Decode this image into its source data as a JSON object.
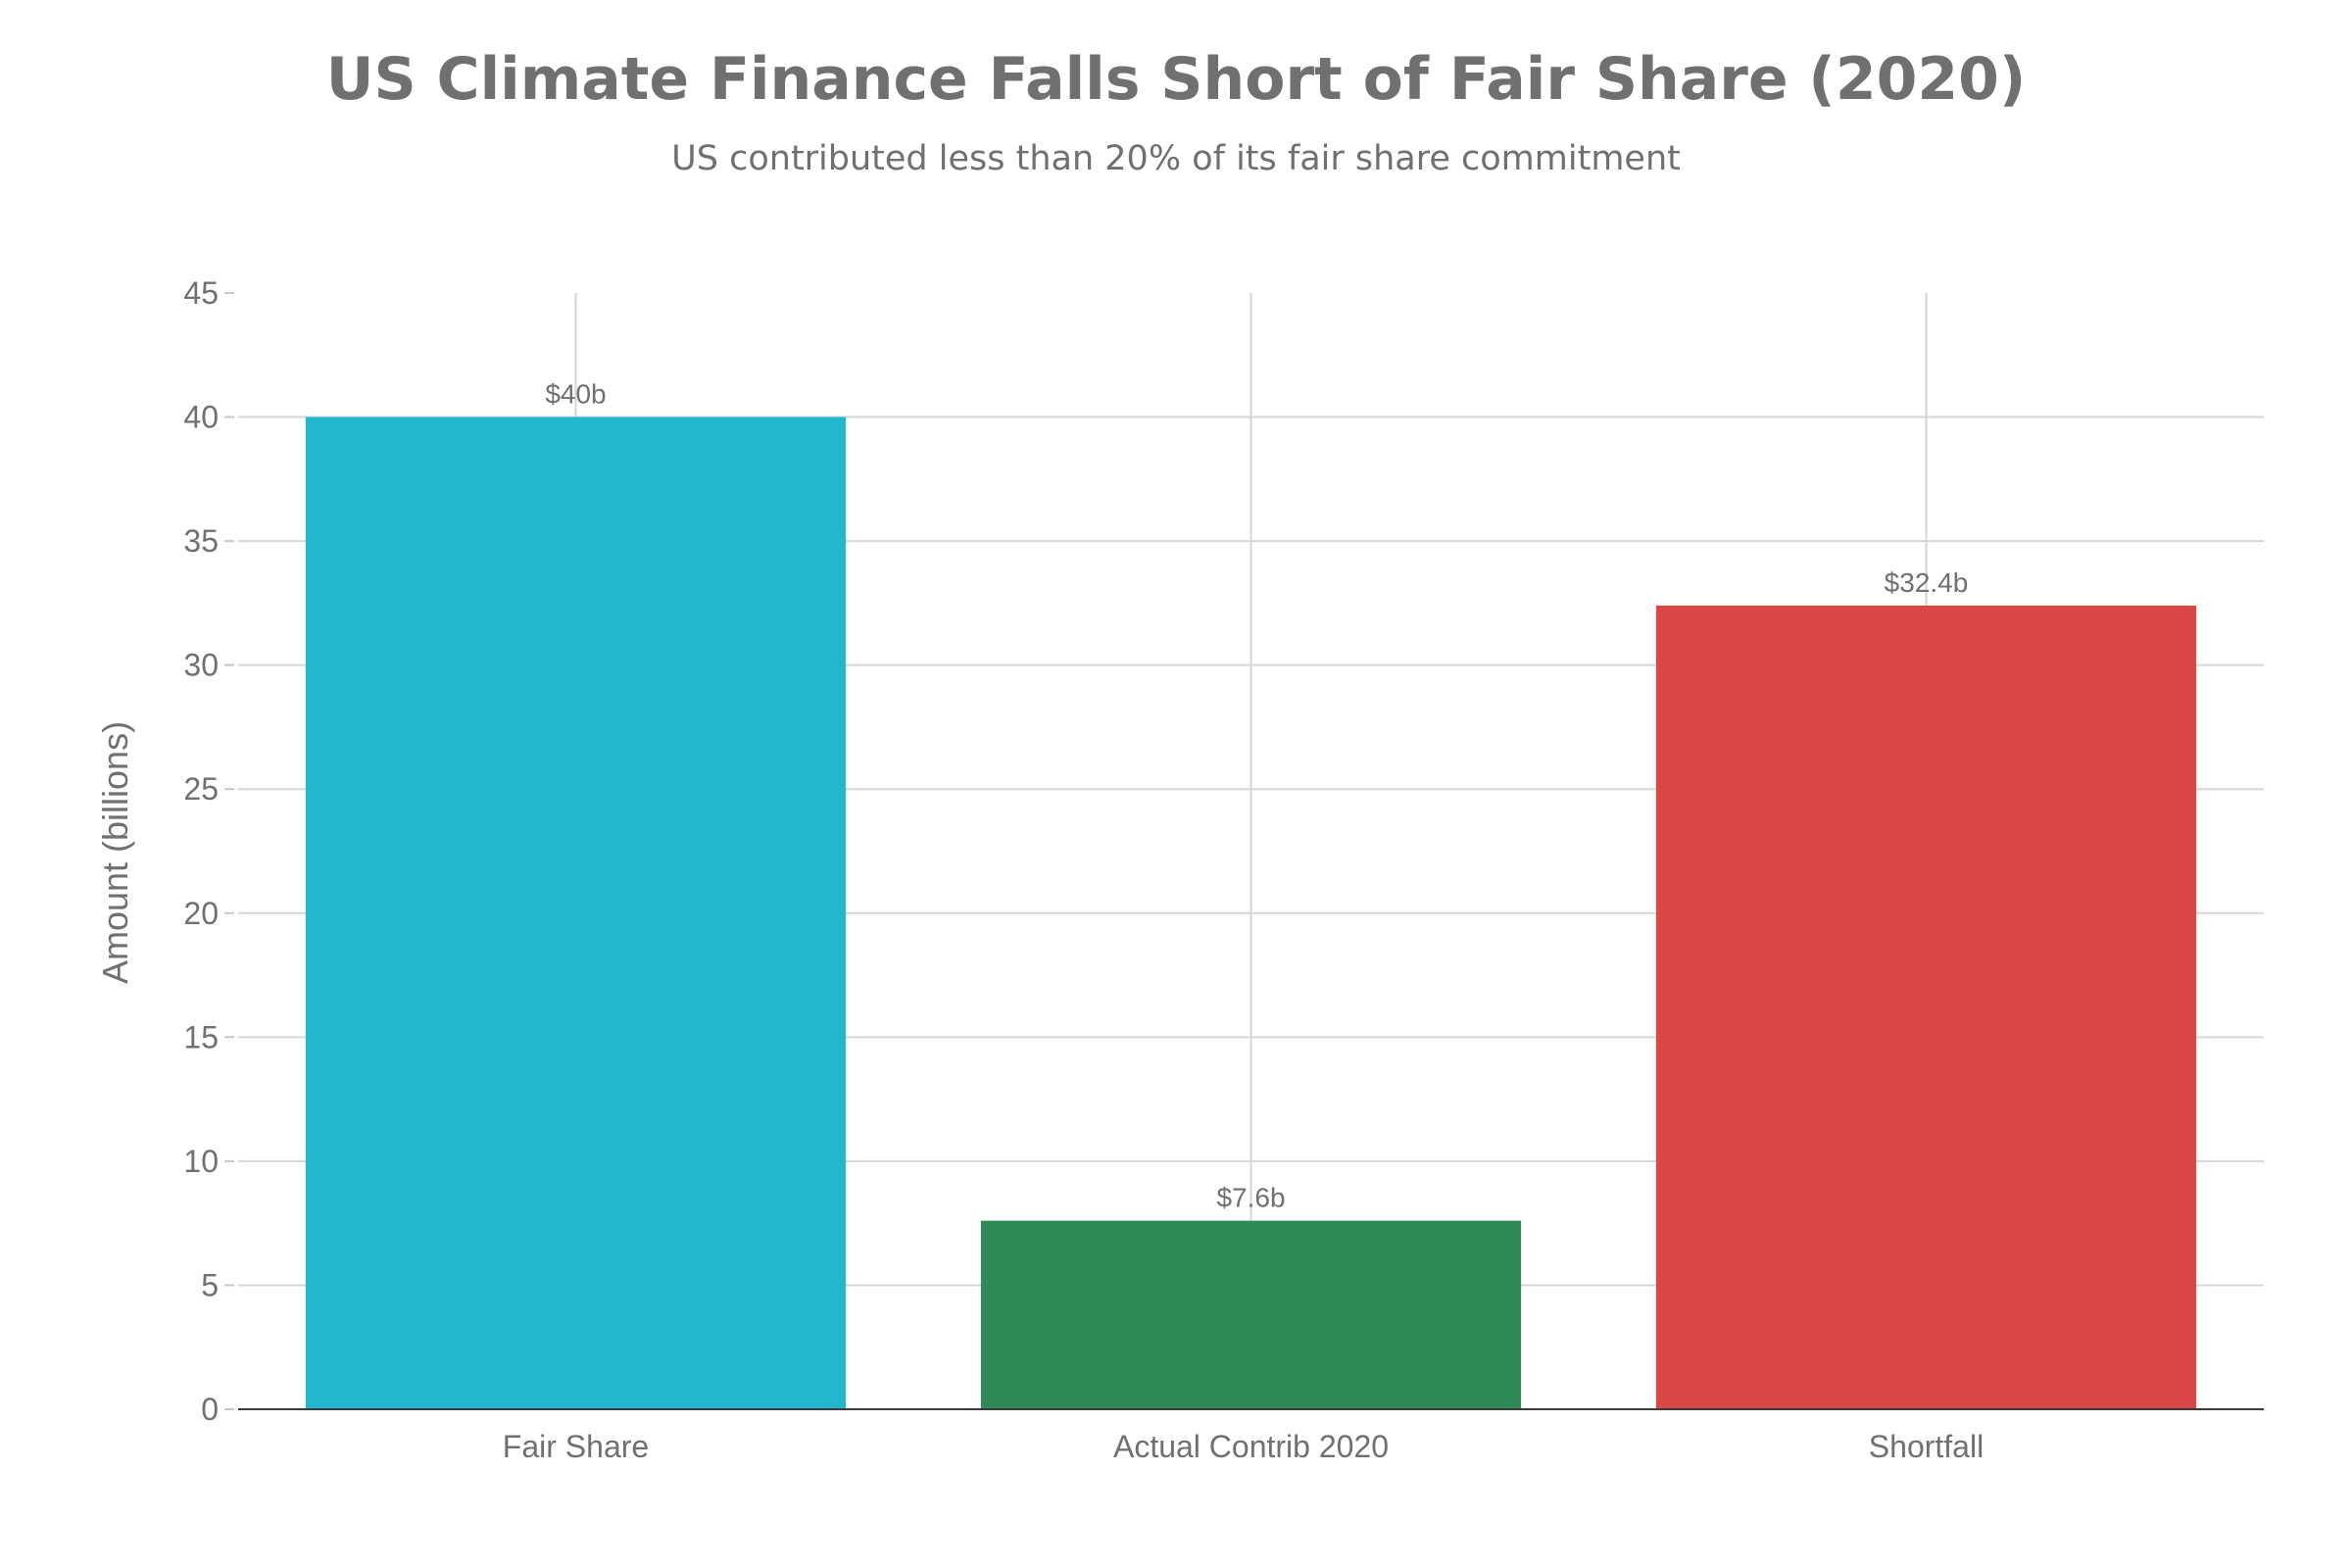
{
  "chart_data": {
    "type": "bar",
    "title": "US Climate Finance Falls Short of Fair Share (2020)",
    "subtitle": "US contributed less than 20% of its fair share commitment",
    "xlabel": "",
    "ylabel": "Amount (billions)",
    "ylim": [
      0,
      45
    ],
    "yticks": [
      0,
      5,
      10,
      15,
      20,
      25,
      30,
      35,
      40,
      45
    ],
    "categories": [
      "Fair Share",
      "Actual Contrib 2020",
      "Shortfall"
    ],
    "values": [
      40,
      7.6,
      32.4
    ],
    "data_labels": [
      "$40b",
      "$7.6b",
      "$32.4b"
    ],
    "colors": [
      "#21b7cc",
      "#2e8b57",
      "#db4647"
    ],
    "grid": true,
    "legend": "none"
  }
}
